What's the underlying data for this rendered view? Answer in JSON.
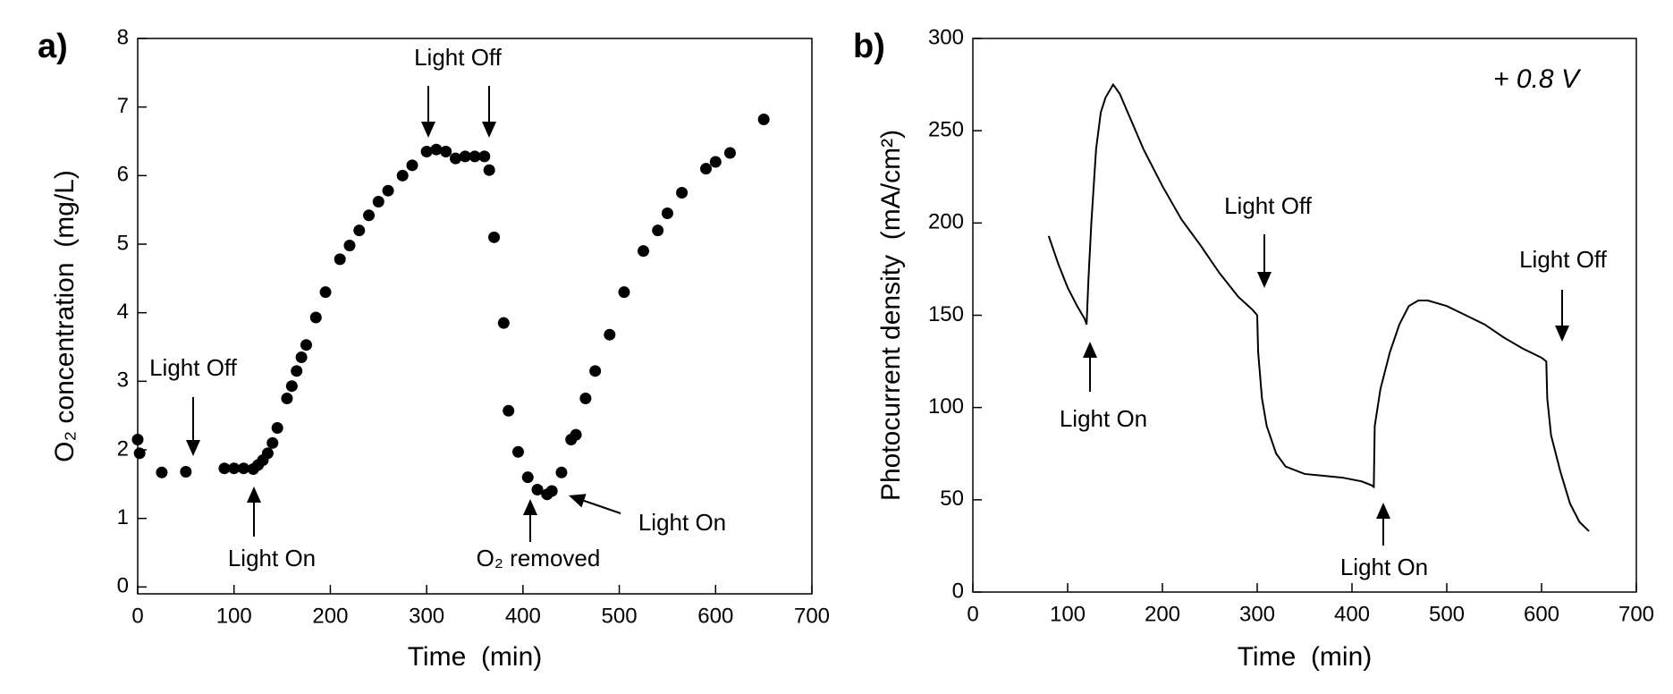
{
  "chart_data": [
    {
      "type": "scatter",
      "panel_label": "a)",
      "x_label": "Time  (min)",
      "y_label": "O₂ concentration  (mg/L)",
      "color": "#000000",
      "xlim": [
        0,
        700
      ],
      "ylim": [
        -0.1,
        8
      ],
      "xticks": [
        0,
        100,
        200,
        300,
        400,
        500,
        600,
        700
      ],
      "yticks": [
        0,
        1,
        2,
        3,
        4,
        5,
        6,
        7,
        8
      ],
      "x": [
        0,
        2,
        25,
        50,
        90,
        100,
        110,
        120,
        125,
        130,
        135,
        140,
        145,
        155,
        160,
        165,
        170,
        175,
        185,
        195,
        210,
        220,
        230,
        240,
        250,
        260,
        275,
        285,
        300,
        310,
        320,
        330,
        340,
        350,
        360,
        365,
        370,
        380,
        385,
        395,
        405,
        415,
        425,
        430,
        440,
        450,
        455,
        465,
        475,
        490,
        505,
        525,
        540,
        550,
        565,
        590,
        600,
        615,
        650
      ],
      "values": [
        2.15,
        1.95,
        1.67,
        1.68,
        1.73,
        1.73,
        1.73,
        1.72,
        1.78,
        1.85,
        1.95,
        2.1,
        2.32,
        2.75,
        2.93,
        3.15,
        3.35,
        3.53,
        3.93,
        4.3,
        4.78,
        4.98,
        5.2,
        5.42,
        5.62,
        5.78,
        6.0,
        6.15,
        6.35,
        6.38,
        6.35,
        6.25,
        6.28,
        6.28,
        6.28,
        6.08,
        5.1,
        3.85,
        2.57,
        1.97,
        1.6,
        1.42,
        1.35,
        1.4,
        1.67,
        2.15,
        2.22,
        2.75,
        3.15,
        3.68,
        4.3,
        4.9,
        5.2,
        5.45,
        5.75,
        6.1,
        6.2,
        6.33,
        6.82
      ],
      "annotations": [
        "Light Off",
        "Light On",
        "Light Off",
        "O₂ removed",
        "Light On"
      ]
    },
    {
      "type": "line",
      "panel_label": "b)",
      "x_label": "Time  (min)",
      "y_label": "Photocurrent density  (mA/cm²)",
      "color": "#000000",
      "xlim": [
        0,
        700
      ],
      "ylim": [
        0,
        300
      ],
      "xticks": [
        0,
        100,
        200,
        300,
        400,
        500,
        600,
        700
      ],
      "yticks": [
        0,
        50,
        100,
        150,
        200,
        250,
        300
      ],
      "x": [
        80,
        90,
        100,
        110,
        118,
        120,
        122,
        125,
        130,
        135,
        140,
        148,
        155,
        165,
        180,
        200,
        220,
        240,
        260,
        280,
        295,
        300,
        301,
        305,
        310,
        320,
        330,
        350,
        370,
        390,
        410,
        420,
        423,
        424,
        430,
        440,
        450,
        460,
        470,
        480,
        500,
        520,
        540,
        560,
        580,
        600,
        605,
        606,
        610,
        620,
        630,
        640,
        650
      ],
      "values": [
        193,
        178,
        165,
        155,
        148,
        145,
        170,
        200,
        240,
        260,
        268,
        275,
        270,
        258,
        240,
        220,
        202,
        188,
        173,
        160,
        153,
        150,
        130,
        105,
        90,
        75,
        68,
        64,
        63,
        62,
        60,
        58,
        57,
        90,
        110,
        130,
        145,
        155,
        158,
        158,
        155,
        150,
        145,
        138,
        132,
        127,
        125,
        105,
        85,
        65,
        48,
        38,
        33
      ],
      "annotations": [
        "Light On",
        "Light Off",
        "Light On",
        "Light Off",
        "+ 0.8 V"
      ]
    }
  ]
}
